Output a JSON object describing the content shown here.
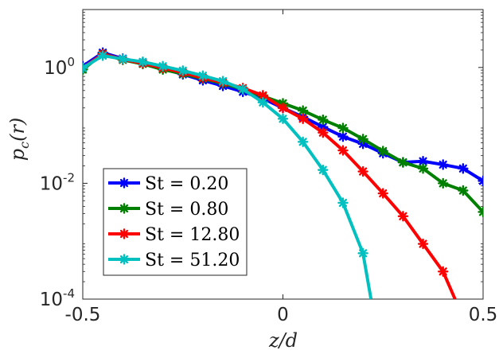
{
  "chart_data": {
    "type": "line",
    "yscale": "log",
    "xlabel": "z/d",
    "ylabel": "p_c(r)",
    "xlim": [
      -0.5,
      0.5
    ],
    "ylim": [
      0.0001,
      10
    ],
    "grid": false,
    "legend_position": "bottom-left",
    "x_ticks": [
      {
        "value": -0.5,
        "label": "-0.5"
      },
      {
        "value": 0,
        "label": "0"
      },
      {
        "value": 0.5,
        "label": "0.5"
      }
    ],
    "y_ticks": [
      {
        "value": 1,
        "base": "10",
        "exp": "0"
      },
      {
        "value": 0.01,
        "base": "10",
        "exp": "-2"
      },
      {
        "value": 0.0001,
        "base": "10",
        "exp": "-4"
      }
    ],
    "series": [
      {
        "name": "St = 0.20",
        "label": "St = 0.20",
        "color": "#0000ff",
        "x": [
          -0.5,
          -0.45,
          -0.4,
          -0.35,
          -0.3,
          -0.25,
          -0.2,
          -0.15,
          -0.1,
          -0.05,
          0,
          0.05,
          0.1,
          0.15,
          0.2,
          0.25,
          0.3,
          0.35,
          0.4,
          0.45,
          0.5
        ],
        "y": [
          1.05,
          1.8,
          1.42,
          1.2,
          0.95,
          0.76,
          0.6,
          0.48,
          0.38,
          0.29,
          0.2,
          0.14,
          0.094,
          0.064,
          0.048,
          0.033,
          0.023,
          0.024,
          0.021,
          0.018,
          0.011
        ]
      },
      {
        "name": "St = 0.80",
        "label": "St = 0.80",
        "color": "#008000",
        "x": [
          -0.5,
          -0.45,
          -0.4,
          -0.35,
          -0.3,
          -0.25,
          -0.2,
          -0.15,
          -0.1,
          -0.05,
          0,
          0.05,
          0.1,
          0.15,
          0.2,
          0.25,
          0.3,
          0.35,
          0.4,
          0.45,
          0.5
        ],
        "y": [
          0.92,
          1.72,
          1.35,
          1.15,
          0.92,
          0.78,
          0.64,
          0.53,
          0.42,
          0.32,
          0.24,
          0.18,
          0.125,
          0.09,
          0.058,
          0.036,
          0.023,
          0.018,
          0.01,
          0.0075,
          0.0032
        ]
      },
      {
        "name": "St = 12.80",
        "label": "St = 12.80",
        "color": "#ff0000",
        "x": [
          -0.5,
          -0.45,
          -0.4,
          -0.35,
          -0.3,
          -0.25,
          -0.2,
          -0.15,
          -0.1,
          -0.05,
          0,
          0.05,
          0.1,
          0.15,
          0.2,
          0.25,
          0.3,
          0.35,
          0.4,
          0.43
        ],
        "y": [
          0.98,
          1.7,
          1.38,
          1.18,
          0.98,
          0.82,
          0.66,
          0.55,
          0.44,
          0.33,
          0.2,
          0.13,
          0.075,
          0.037,
          0.016,
          0.0067,
          0.0027,
          0.0009,
          0.0003,
          0.0001
        ]
      },
      {
        "name": "St = 51.20",
        "label": "St = 51.20",
        "color": "#00c0c0",
        "x": [
          -0.5,
          -0.45,
          -0.4,
          -0.35,
          -0.3,
          -0.25,
          -0.2,
          -0.15,
          -0.1,
          -0.05,
          0,
          0.05,
          0.1,
          0.15,
          0.2,
          0.22
        ],
        "y": [
          0.98,
          1.6,
          1.4,
          1.25,
          1.05,
          0.88,
          0.72,
          0.58,
          0.42,
          0.25,
          0.13,
          0.052,
          0.017,
          0.0046,
          0.00062,
          0.0001
        ]
      }
    ]
  }
}
